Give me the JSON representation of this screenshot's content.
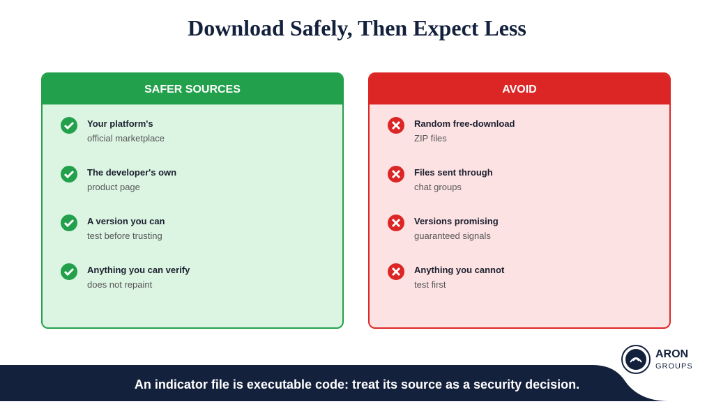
{
  "title": "Download Safely, Then Expect Less",
  "panels": [
    {
      "heading": "SAFER SOURCES",
      "items": [
        {
          "title": "Your platform's",
          "detail": "official marketplace"
        },
        {
          "title": "The developer's own",
          "detail": "product page"
        },
        {
          "title": "A version you can",
          "detail": "test before trusting"
        },
        {
          "title": "Anything you can verify",
          "detail": "does not repaint"
        }
      ]
    },
    {
      "heading": "AVOID",
      "items": [
        {
          "title": "Random free-download",
          "detail": "ZIP files"
        },
        {
          "title": "Files sent through",
          "detail": "chat groups"
        },
        {
          "title": "Versions promising",
          "detail": "guaranteed signals"
        },
        {
          "title": "Anything you cannot",
          "detail": "test first"
        }
      ]
    }
  ],
  "footer": "An indicator file is executable code: treat its source as a security decision.",
  "logo": {
    "name": "ARON",
    "sub": "GROUPS"
  }
}
